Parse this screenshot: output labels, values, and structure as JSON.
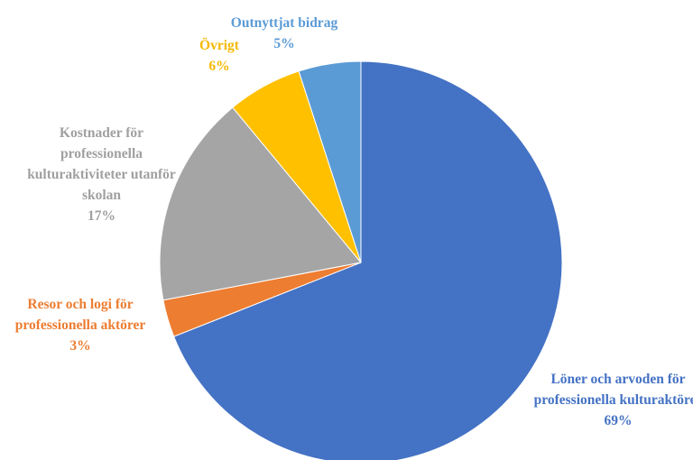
{
  "chart_data": {
    "type": "pie",
    "categories": [
      "Löner och arvoden för professionella kulturaktörer",
      "Resor och logi för professionella aktörer",
      "Kostnader för professionella kulturaktiviteter utanför skolan",
      "Övrigt",
      "Outnyttjat bidrag"
    ],
    "values": [
      69,
      3,
      17,
      6,
      5
    ],
    "value_labels": [
      "69%",
      "3%",
      "17%",
      "6%",
      "5%"
    ],
    "colors": [
      "#4472c4",
      "#ed7d31",
      "#a5a5a5",
      "#ffc000",
      "#5b9bd5"
    ]
  }
}
